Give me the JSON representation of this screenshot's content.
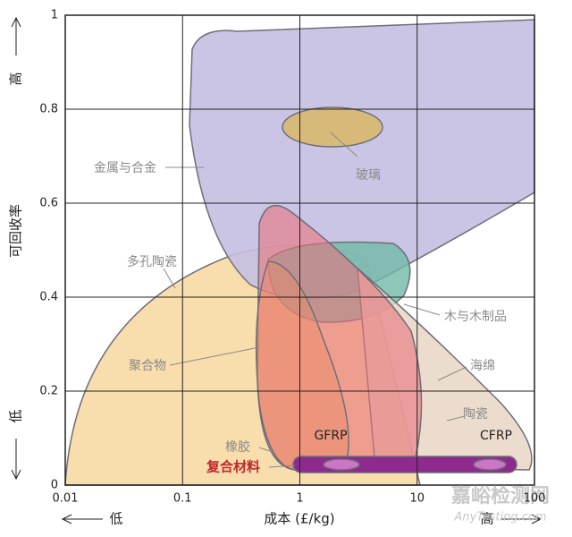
{
  "chart_data": {
    "type": "region",
    "x_label": "成本 (£/kg)",
    "y_label": "可回收率",
    "x_low": "低",
    "x_high": "高",
    "y_low": "低",
    "y_high": "高",
    "xscale": "log",
    "xlim": [
      0.01,
      100
    ],
    "xticks": [
      0.01,
      0.1,
      1,
      10,
      100
    ],
    "ylim": [
      0,
      1
    ],
    "yticks": [
      0,
      0.2,
      0.4,
      0.6,
      0.8,
      1
    ],
    "grid": true,
    "regions": [
      "金属与合金",
      "玻璃",
      "多孔陶瓷",
      "木与木制品",
      "聚合物",
      "海绵",
      "陶瓷",
      "橡胶",
      "GFRP",
      "CFRP",
      "复合材料"
    ],
    "watermark": [
      "嘉峪检测网",
      "AnyTesting.com"
    ]
  }
}
